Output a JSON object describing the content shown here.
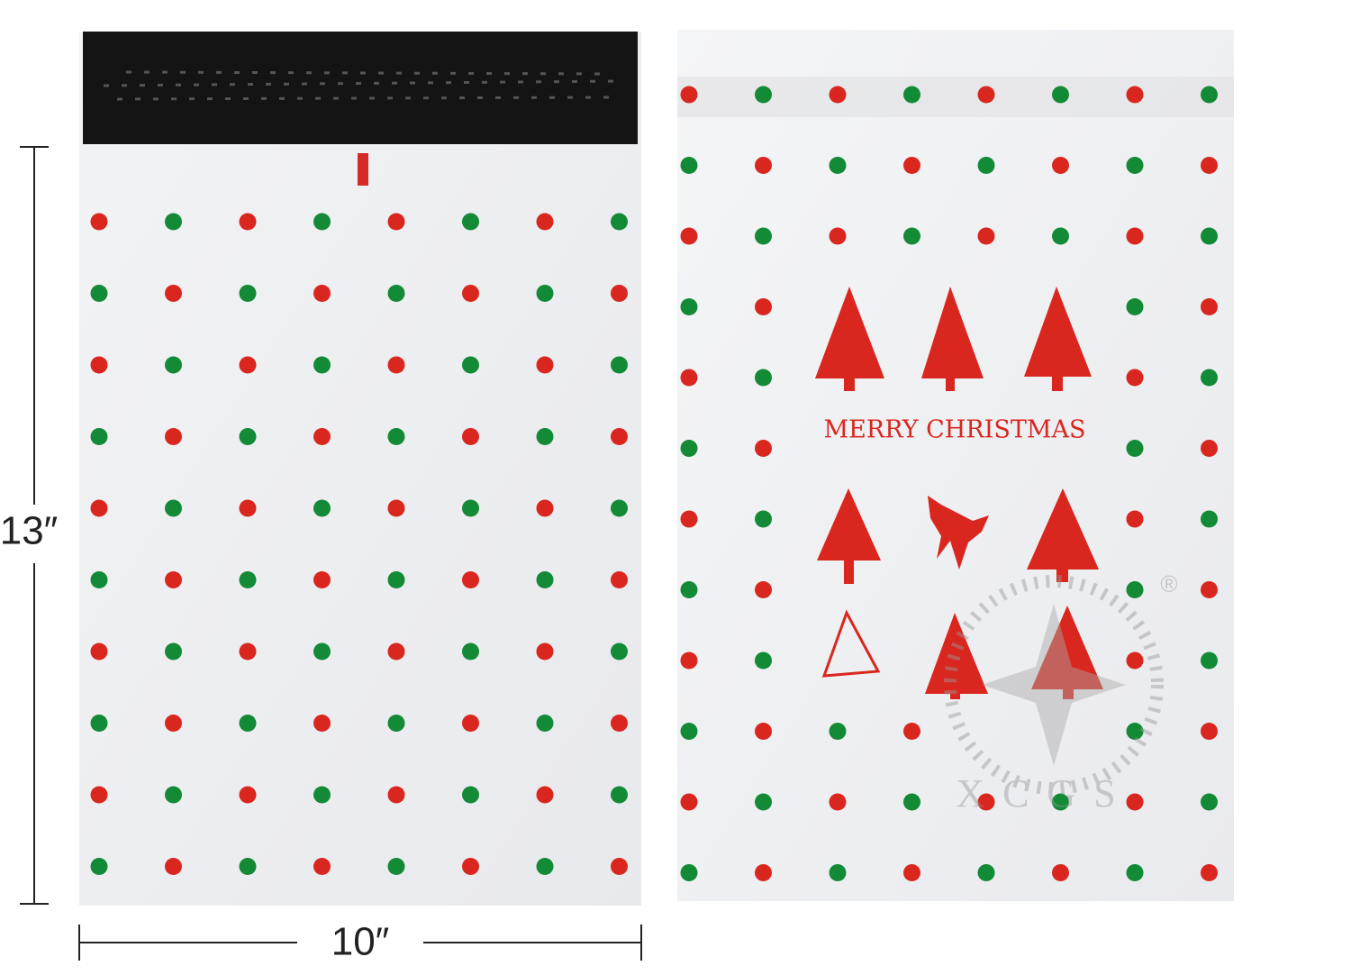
{
  "dimensions": {
    "height": "13″",
    "width": "10″"
  },
  "print": {
    "greeting": "MERRY CHRISTMAS"
  },
  "watermark": {
    "brand": "XCGS",
    "registered": "®"
  }
}
